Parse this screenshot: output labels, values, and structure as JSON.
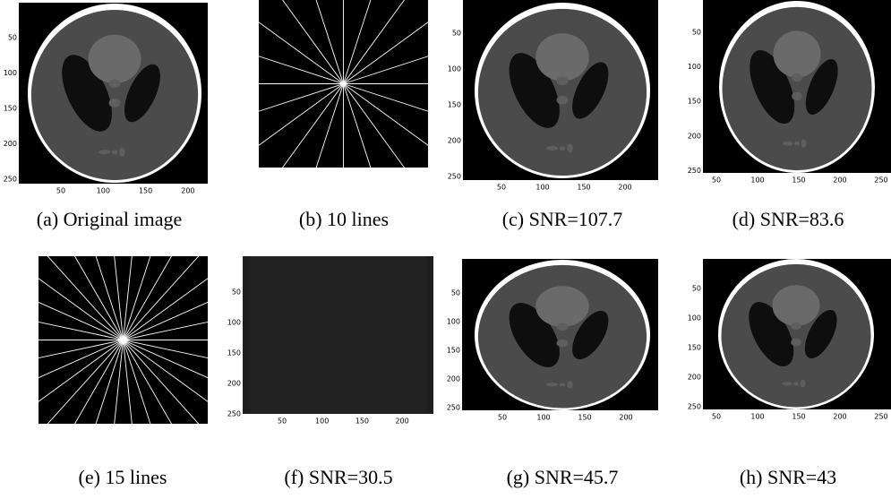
{
  "panels": [
    {
      "caption": "(a) Original image",
      "xticks": [
        50,
        100,
        150,
        200
      ],
      "yticks": [
        50,
        100,
        150,
        200,
        250
      ]
    },
    {
      "tag": "(b)",
      "lines": 10,
      "unit": "lines"
    },
    {
      "caption": "(c) SNR=107.7",
      "xticks": [
        50,
        100,
        150,
        200
      ],
      "yticks": [
        50,
        100,
        150,
        200,
        250
      ]
    },
    {
      "caption": "(d) SNR=83.6",
      "xticks": [
        50,
        100,
        150,
        200,
        250
      ],
      "yticks": [
        50,
        100,
        150,
        200,
        250
      ]
    },
    {
      "tag": "(e)",
      "lines": 15,
      "unit": "lines"
    },
    {
      "caption": "(f) SNR=30.5",
      "xticks": [
        50,
        100,
        150,
        200
      ],
      "yticks": [
        50,
        100,
        150,
        200,
        250
      ]
    },
    {
      "caption": "(g) SNR=45.7",
      "xticks": [
        50,
        100,
        150,
        200
      ],
      "yticks": [
        50,
        100,
        150,
        200,
        250
      ]
    },
    {
      "caption": "(h) SNR=43",
      "xticks": [
        50,
        100,
        150,
        200,
        250
      ],
      "yticks": [
        50,
        100,
        150,
        200,
        250
      ]
    }
  ]
}
